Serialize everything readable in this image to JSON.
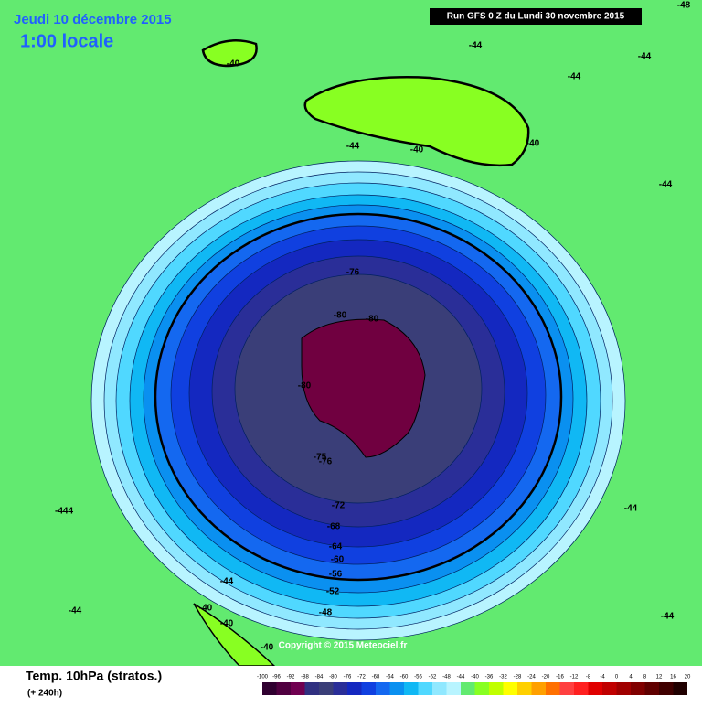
{
  "header": {
    "date": "Jeudi 10 décembre 2015",
    "time": "1:00 locale",
    "run": "Run GFS 0 Z du Lundi 30 novembre 2015",
    "corner_label": "-48"
  },
  "contour_labels": [
    "-40",
    "-44",
    "-44",
    "-44",
    "-40",
    "-40",
    "-44",
    "-44",
    "-76",
    "-80",
    "-80",
    "-80",
    "-75",
    "-76",
    "-72",
    "-68",
    "-64",
    "-60",
    "-56",
    "-52",
    "-48",
    "-444",
    "-44",
    "-44",
    "-44",
    "-40",
    "-40",
    "-44",
    "-40"
  ],
  "copyright": "Copyright © 2015 Meteociel.fr",
  "footer": {
    "title": "Temp. 10hPa (stratos.)",
    "lead": "(+ 240h)"
  },
  "legend": {
    "labels": [
      -100,
      -96,
      -92,
      -88,
      -84,
      -80,
      -76,
      -72,
      -68,
      -64,
      -60,
      -56,
      -52,
      -48,
      -44,
      -40,
      -36,
      -32,
      -28,
      -24,
      -20,
      -16,
      -12,
      -8,
      -4,
      0,
      4,
      8,
      12,
      16,
      20
    ]
  }
}
